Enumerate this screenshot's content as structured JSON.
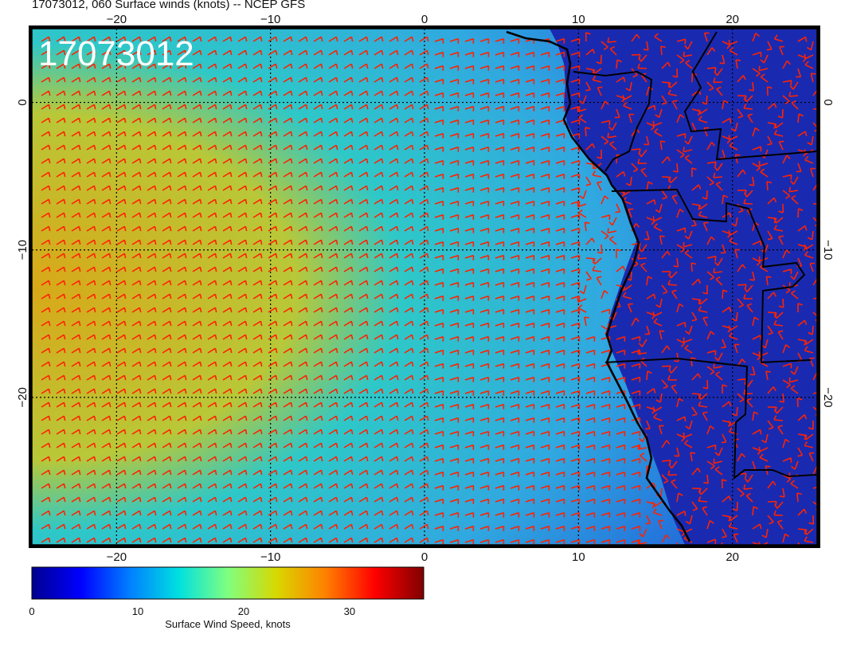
{
  "title": "17073012, 060 Surface winds (knots) -- NCEP GFS",
  "stamp": "17073012",
  "map": {
    "lon_range": [
      -25.5,
      25.5
    ],
    "lat_range": [
      -30,
      5
    ],
    "lon_ticks": [
      -20,
      -10,
      0,
      10,
      20
    ],
    "lat_ticks": [
      0,
      -10,
      -20
    ],
    "lon_tick_labels": [
      "−20",
      "−10",
      "0",
      "10",
      "20"
    ],
    "lat_tick_labels": [
      "0",
      "−10",
      "−20"
    ],
    "gridlines": "dotted",
    "barb_color": "#ff2200",
    "coastline_color": "#000000",
    "land_fill": "#1a2ab0",
    "ocean_low": "#1e5ad8",
    "ocean_mid": "#2ec8c8",
    "ocean_high": "#d8c018"
  },
  "colorbar": {
    "title": "Surface Wind Speed, knots",
    "ticks": [
      0,
      10,
      20,
      30
    ],
    "tick_labels": [
      "0",
      "10",
      "20",
      "30"
    ],
    "range": [
      0,
      37
    ],
    "colors": [
      "#00008f",
      "#0000ff",
      "#0080ff",
      "#00e0e0",
      "#80ff80",
      "#d8d800",
      "#ff8000",
      "#ff0000",
      "#800000"
    ]
  }
}
